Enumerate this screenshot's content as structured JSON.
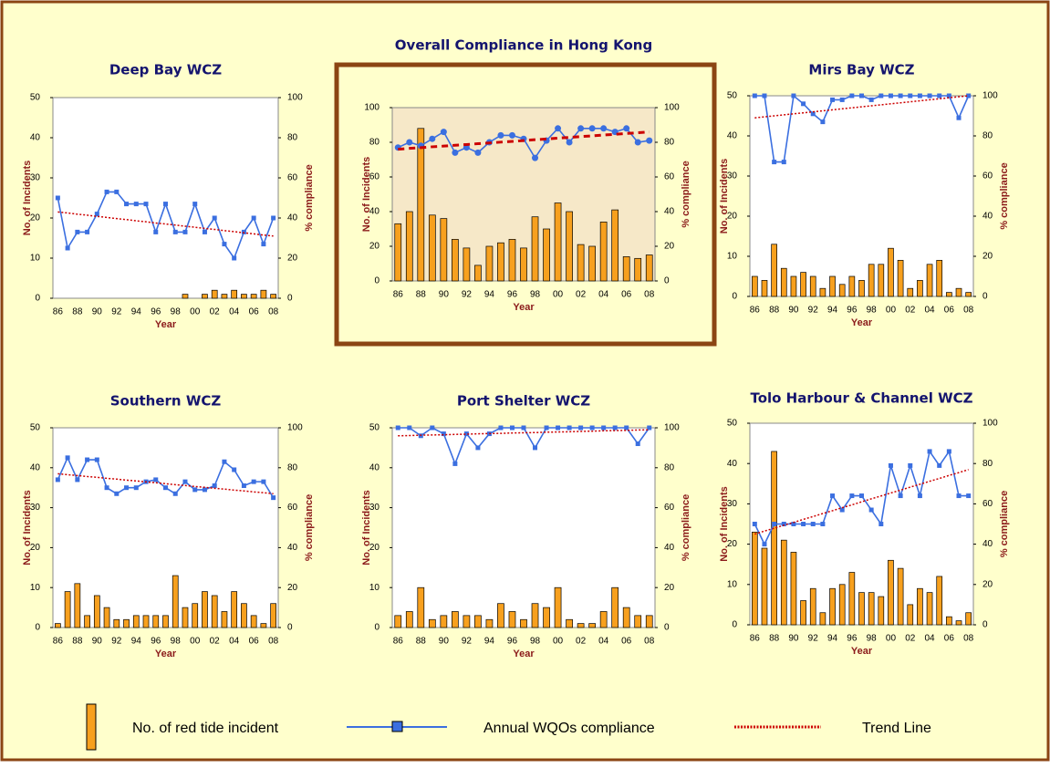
{
  "chart_data": [
    {
      "type": "bar-line",
      "title": "Deep Bay WCZ",
      "xlabel": "Year",
      "ylabel": "No. of Incidents",
      "y2label": "% compliance",
      "categories": [
        "86",
        null,
        "88",
        null,
        "90",
        null,
        "92",
        null,
        "94",
        null,
        "96",
        null,
        "98",
        null,
        "00",
        null,
        "02",
        null,
        "04",
        null,
        "06",
        null,
        "08"
      ],
      "ylim": [
        0,
        50
      ],
      "yticks": [
        0,
        10,
        20,
        30,
        40,
        50
      ],
      "y2lim": [
        0,
        100
      ],
      "y2ticks": [
        0,
        20,
        40,
        60,
        80,
        100
      ],
      "series": [
        {
          "kind": "bar",
          "color": "#f7a01e",
          "values": [
            0,
            0,
            0,
            0,
            0,
            0,
            0,
            0,
            0,
            0,
            0,
            0,
            0,
            1,
            0,
            1,
            2,
            1,
            2,
            1,
            1,
            2,
            1
          ]
        },
        {
          "kind": "line",
          "axis": "y2",
          "marker": "square",
          "color": "#3b6fe0",
          "values": [
            50,
            25,
            33,
            33,
            42,
            53,
            53,
            47,
            47,
            47,
            33,
            47,
            33,
            33,
            47,
            33,
            40,
            27,
            20,
            33,
            40,
            27,
            40
          ]
        },
        {
          "kind": "trend",
          "axis": "y2",
          "color": "#cc0000",
          "values": [
            43,
            42.5,
            41.9,
            41.4,
            40.8,
            40.3,
            39.7,
            39.2,
            38.6,
            38.1,
            37.5,
            37,
            36.5,
            35.9,
            35.4,
            34.8,
            34.3,
            33.7,
            33.2,
            32.6,
            32.1,
            31.5,
            31
          ]
        }
      ]
    },
    {
      "type": "bar-line",
      "title": "Overall Compliance in Hong Kong",
      "xlabel": "Year",
      "ylabel": "No. of Incidents",
      "y2label": "% compliance",
      "background": "#f6e8c8",
      "categories": [
        "86",
        null,
        "88",
        null,
        "90",
        null,
        "92",
        null,
        "94",
        null,
        "96",
        null,
        "98",
        null,
        "00",
        null,
        "02",
        null,
        "04",
        null,
        "06",
        null,
        "08"
      ],
      "ylim": [
        0,
        100
      ],
      "yticks": [
        0,
        20,
        40,
        60,
        80,
        100
      ],
      "y2lim": [
        0,
        100
      ],
      "y2ticks": [
        0,
        20,
        40,
        60,
        80,
        100
      ],
      "series": [
        {
          "name": "No. of red tide incident",
          "kind": "bar",
          "color": "#f7a01e",
          "values": [
            33,
            40,
            88,
            38,
            36,
            24,
            19,
            9,
            20,
            22,
            24,
            19,
            37,
            30,
            45,
            40,
            21,
            20,
            34,
            41,
            14,
            13,
            15
          ]
        },
        {
          "name": "Annual WQOs compliance",
          "kind": "line",
          "axis": "y2",
          "marker": "circle",
          "color": "#3b6fe0",
          "values": [
            77,
            80,
            78,
            82,
            86,
            74,
            77,
            74,
            80,
            84,
            84,
            82,
            71,
            81,
            88,
            80,
            88,
            88,
            88,
            86,
            88,
            80,
            81
          ]
        },
        {
          "name": "Trend Line",
          "kind": "trend",
          "axis": "y2",
          "color": "#cc0000",
          "values": [
            76,
            76.5,
            76.9,
            77.4,
            77.8,
            78.3,
            78.7,
            79.2,
            79.6,
            80.1,
            80.5,
            81,
            81.5,
            81.9,
            82.4,
            82.8,
            83.3,
            83.7,
            84.2,
            84.6,
            85.1,
            85.5,
            86
          ]
        }
      ]
    },
    {
      "type": "bar-line",
      "title": "Mirs Bay WCZ",
      "xlabel": "Year",
      "ylabel": "No. of Incidents",
      "y2label": "% compliance",
      "categories": [
        "86",
        null,
        "88",
        null,
        "90",
        null,
        "92",
        null,
        "94",
        null,
        "96",
        null,
        "98",
        null,
        "00",
        null,
        "02",
        null,
        "04",
        null,
        "06",
        null,
        "08"
      ],
      "ylim": [
        0,
        50
      ],
      "yticks": [
        0,
        10,
        20,
        30,
        40,
        50
      ],
      "y2lim": [
        0,
        100
      ],
      "y2ticks": [
        0,
        20,
        40,
        60,
        80,
        100
      ],
      "series": [
        {
          "kind": "bar",
          "color": "#f7a01e",
          "values": [
            5,
            4,
            13,
            7,
            5,
            6,
            5,
            2,
            5,
            3,
            5,
            4,
            8,
            8,
            12,
            9,
            2,
            4,
            8,
            9,
            1,
            2,
            1
          ]
        },
        {
          "kind": "line",
          "axis": "y2",
          "marker": "square",
          "color": "#3b6fe0",
          "values": [
            100,
            100,
            67,
            67,
            100,
            96,
            91,
            87,
            98,
            98,
            100,
            100,
            98,
            100,
            100,
            100,
            100,
            100,
            100,
            100,
            100,
            89,
            100
          ]
        },
        {
          "kind": "trend",
          "axis": "y2",
          "color": "#cc0000",
          "values": [
            89,
            89.5,
            90,
            90.5,
            91,
            91.5,
            92,
            92.5,
            93,
            93.5,
            94,
            94.5,
            95,
            95.5,
            96,
            96.5,
            97,
            97.5,
            98,
            98.5,
            99,
            99.5,
            100
          ]
        }
      ]
    },
    {
      "type": "bar-line",
      "title": "Southern WCZ",
      "xlabel": "Year",
      "ylabel": "No. of Incidents",
      "y2label": "% compliance",
      "categories": [
        "86",
        null,
        "88",
        null,
        "90",
        null,
        "92",
        null,
        "94",
        null,
        "96",
        null,
        "98",
        null,
        "00",
        null,
        "02",
        null,
        "04",
        null,
        "06",
        null,
        "08"
      ],
      "ylim": [
        0,
        50
      ],
      "yticks": [
        0,
        10,
        20,
        30,
        40,
        50
      ],
      "y2lim": [
        0,
        100
      ],
      "y2ticks": [
        0,
        20,
        40,
        60,
        80,
        100
      ],
      "series": [
        {
          "kind": "bar",
          "color": "#f7a01e",
          "values": [
            1,
            9,
            11,
            3,
            8,
            5,
            2,
            2,
            3,
            3,
            3,
            3,
            13,
            5,
            6,
            9,
            8,
            4,
            9,
            6,
            3,
            1,
            6
          ]
        },
        {
          "kind": "line",
          "axis": "y2",
          "marker": "square",
          "color": "#3b6fe0",
          "values": [
            74,
            85,
            74,
            84,
            84,
            70,
            67,
            70,
            70,
            73,
            74,
            70,
            67,
            73,
            69,
            69,
            71,
            83,
            79,
            71,
            73,
            73,
            65
          ]
        },
        {
          "kind": "trend",
          "axis": "y2",
          "color": "#cc0000",
          "values": [
            77,
            76.5,
            76.1,
            75.6,
            75.2,
            74.7,
            74.3,
            73.8,
            73.4,
            72.9,
            72.5,
            72,
            71.5,
            71.1,
            70.6,
            70.2,
            69.7,
            69.3,
            68.8,
            68.4,
            67.9,
            67.5,
            67
          ]
        }
      ]
    },
    {
      "type": "bar-line",
      "title": "Port Shelter WCZ",
      "xlabel": "Year",
      "ylabel": "No. of Incidents",
      "y2label": "% compliance",
      "categories": [
        "86",
        null,
        "88",
        null,
        "90",
        null,
        "92",
        null,
        "94",
        null,
        "96",
        null,
        "98",
        null,
        "00",
        null,
        "02",
        null,
        "04",
        null,
        "06",
        null,
        "08"
      ],
      "ylim": [
        0,
        50
      ],
      "yticks": [
        0,
        10,
        20,
        30,
        40,
        50
      ],
      "y2lim": [
        0,
        100
      ],
      "y2ticks": [
        0,
        20,
        40,
        60,
        80,
        100
      ],
      "series": [
        {
          "kind": "bar",
          "color": "#f7a01e",
          "values": [
            3,
            4,
            10,
            2,
            3,
            4,
            3,
            3,
            2,
            6,
            4,
            2,
            6,
            5,
            10,
            2,
            1,
            1,
            4,
            10,
            5,
            3,
            3
          ]
        },
        {
          "kind": "line",
          "axis": "y2",
          "marker": "square",
          "color": "#3b6fe0",
          "values": [
            100,
            100,
            96,
            100,
            97,
            82,
            97,
            90,
            97,
            100,
            100,
            100,
            90,
            100,
            100,
            100,
            100,
            100,
            100,
            100,
            100,
            92,
            100
          ]
        },
        {
          "kind": "trend",
          "axis": "y2",
          "color": "#cc0000",
          "values": [
            96,
            96.1,
            96.3,
            96.4,
            96.5,
            96.7,
            96.8,
            97,
            97.1,
            97.2,
            97.4,
            97.5,
            97.6,
            97.8,
            97.9,
            98,
            98.2,
            98.3,
            98.5,
            98.6,
            98.7,
            98.9,
            99
          ]
        }
      ]
    },
    {
      "type": "bar-line",
      "title": "Tolo Harbour & Channel WCZ",
      "xlabel": "Year",
      "ylabel": "No. of Incidents",
      "y2label": "% compliance",
      "categories": [
        "86",
        null,
        "88",
        null,
        "90",
        null,
        "92",
        null,
        "94",
        null,
        "96",
        null,
        "98",
        null,
        "00",
        null,
        "02",
        null,
        "04",
        null,
        "06",
        null,
        "08"
      ],
      "ylim": [
        0,
        50
      ],
      "yticks": [
        0,
        10,
        20,
        30,
        40,
        50
      ],
      "y2lim": [
        0,
        100
      ],
      "y2ticks": [
        0,
        20,
        40,
        60,
        80,
        100
      ],
      "series": [
        {
          "kind": "bar",
          "color": "#f7a01e",
          "values": [
            23,
            19,
            43,
            21,
            18,
            6,
            9,
            3,
            9,
            10,
            13,
            8,
            8,
            7,
            16,
            14,
            5,
            9,
            8,
            12,
            2,
            1,
            3
          ]
        },
        {
          "kind": "line",
          "axis": "y2",
          "marker": "square",
          "color": "#3b6fe0",
          "values": [
            50,
            40,
            50,
            50,
            50,
            50,
            50,
            50,
            64,
            57,
            64,
            64,
            57,
            50,
            79,
            64,
            79,
            64,
            86,
            79,
            86,
            64,
            64
          ]
        },
        {
          "kind": "trend",
          "axis": "y2",
          "color": "#cc0000",
          "values": [
            45,
            46.5,
            47.9,
            49.4,
            50.8,
            52.3,
            53.7,
            55.2,
            56.6,
            58.1,
            59.5,
            61,
            62.5,
            63.9,
            65.4,
            66.8,
            68.3,
            69.7,
            71.2,
            72.6,
            74.1,
            75.5,
            77
          ]
        }
      ]
    }
  ]
}
